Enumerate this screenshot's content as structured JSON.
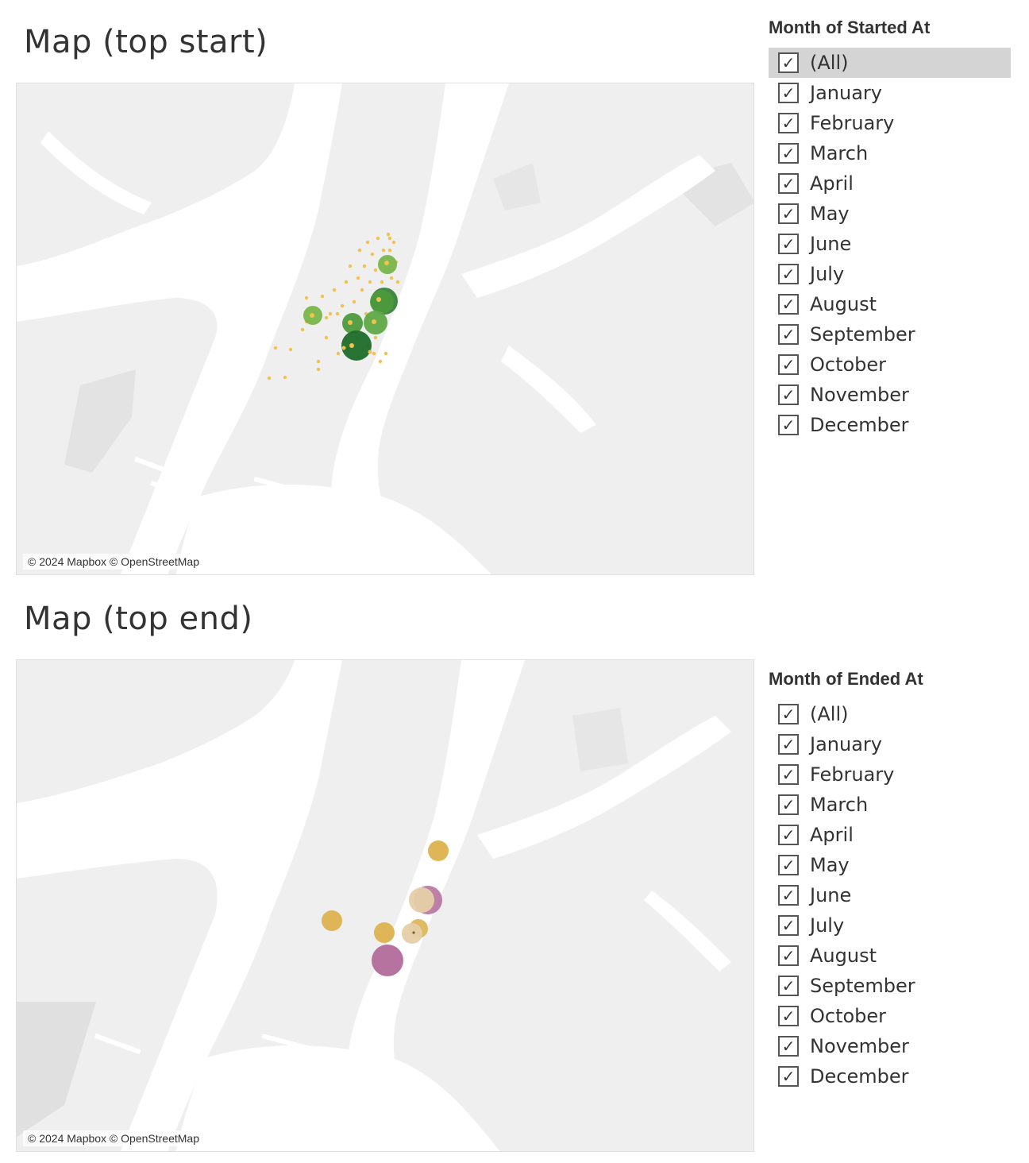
{
  "map_start": {
    "title": "Map (top start)",
    "attribution": "© 2024 Mapbox © OpenStreetMap"
  },
  "map_end": {
    "title": "Map (top end)",
    "attribution": "© 2024 Mapbox © OpenStreetMap"
  },
  "filter_start": {
    "title": "Month of Started At",
    "items": [
      {
        "label": "(All)",
        "checked": true,
        "selected": true
      },
      {
        "label": "January",
        "checked": true
      },
      {
        "label": "February",
        "checked": true
      },
      {
        "label": "March",
        "checked": true
      },
      {
        "label": "April",
        "checked": true
      },
      {
        "label": "May",
        "checked": true
      },
      {
        "label": "June",
        "checked": true
      },
      {
        "label": "July",
        "checked": true
      },
      {
        "label": "August",
        "checked": true
      },
      {
        "label": "September",
        "checked": true
      },
      {
        "label": "October",
        "checked": true
      },
      {
        "label": "November",
        "checked": true
      },
      {
        "label": "December",
        "checked": true
      }
    ]
  },
  "filter_end": {
    "title": "Month of Ended At",
    "items": [
      {
        "label": "(All)",
        "checked": true
      },
      {
        "label": "January",
        "checked": true
      },
      {
        "label": "February",
        "checked": true
      },
      {
        "label": "March",
        "checked": true
      },
      {
        "label": "April",
        "checked": true
      },
      {
        "label": "May",
        "checked": true
      },
      {
        "label": "June",
        "checked": true
      },
      {
        "label": "July",
        "checked": true
      },
      {
        "label": "August",
        "checked": true
      },
      {
        "label": "September",
        "checked": true
      },
      {
        "label": "October",
        "checked": true
      },
      {
        "label": "November",
        "checked": true
      },
      {
        "label": "December",
        "checked": true
      }
    ]
  },
  "colors": {
    "land": "#efefef",
    "water": "#ffffff",
    "park": "#e4e4e4",
    "dot_yellow": "#f2c14e",
    "green_light": "#78b54a",
    "green_mid": "#4c9a3c",
    "green_dark": "#1d6b2a",
    "end_gold": "#dcb24f",
    "end_purple": "#b26b9a",
    "end_peach": "#e6cfa8"
  },
  "check_glyph": "✓"
}
